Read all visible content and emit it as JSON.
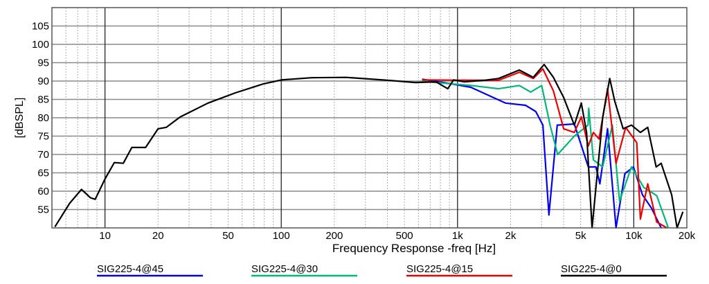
{
  "chart_data": {
    "type": "line",
    "title": "",
    "xlabel": "Frequency Response -freq [Hz]",
    "ylabel": "[dBSPL]",
    "xscale": "log",
    "xlim": [
      5,
      20000
    ],
    "ylim": [
      50,
      110
    ],
    "grid": true,
    "legend_position": "bottom",
    "x_ticks": [
      {
        "v": 10,
        "t": "10"
      },
      {
        "v": 20,
        "t": "20"
      },
      {
        "v": 50,
        "t": "50"
      },
      {
        "v": 100,
        "t": "100"
      },
      {
        "v": 200,
        "t": "200"
      },
      {
        "v": 500,
        "t": "500"
      },
      {
        "v": 1000,
        "t": "1k"
      },
      {
        "v": 2000,
        "t": "2k"
      },
      {
        "v": 5000,
        "t": "5k"
      },
      {
        "v": 10000,
        "t": "10k"
      },
      {
        "v": 20000,
        "t": "20k"
      }
    ],
    "y_ticks": [
      55,
      60,
      65,
      70,
      75,
      80,
      85,
      90,
      95,
      100,
      105
    ],
    "series": [
      {
        "name": "SIG225-4@45",
        "color": "#0000ee",
        "points": [
          [
            630,
            90.5
          ],
          [
            830,
            89.6
          ],
          [
            1190,
            88.3
          ],
          [
            1870,
            84
          ],
          [
            2430,
            83.4
          ],
          [
            2780,
            81.7
          ],
          [
            3050,
            78
          ],
          [
            3300,
            53.5
          ],
          [
            3680,
            78
          ],
          [
            4600,
            78.3
          ],
          [
            5520,
            66.6
          ],
          [
            6100,
            66.6
          ],
          [
            6420,
            62
          ],
          [
            7100,
            77
          ],
          [
            7930,
            50
          ],
          [
            8900,
            64.8
          ],
          [
            9960,
            66.6
          ],
          [
            11200,
            59
          ],
          [
            12600,
            55.4
          ],
          [
            14300,
            50
          ]
        ]
      },
      {
        "name": "SIG225-4@30",
        "color": "#00b878",
        "points": [
          [
            630,
            89.9
          ],
          [
            1190,
            88.8
          ],
          [
            1710,
            87.9
          ],
          [
            2240,
            88.8
          ],
          [
            2600,
            87
          ],
          [
            3000,
            88.8
          ],
          [
            3350,
            78
          ],
          [
            3700,
            70
          ],
          [
            4600,
            75
          ],
          [
            5500,
            78
          ],
          [
            5550,
            82.6
          ],
          [
            5900,
            68.5
          ],
          [
            6660,
            66.6
          ],
          [
            7560,
            78
          ],
          [
            8300,
            57.3
          ],
          [
            9700,
            66.6
          ],
          [
            11400,
            61
          ],
          [
            13500,
            58.8
          ],
          [
            15700,
            50
          ]
        ]
      },
      {
        "name": "SIG225-4@15",
        "color": "#ee0000",
        "points": [
          [
            630,
            90.3
          ],
          [
            1190,
            90.2
          ],
          [
            1710,
            90.2
          ],
          [
            2240,
            92.4
          ],
          [
            2690,
            90.7
          ],
          [
            3050,
            93.3
          ],
          [
            3500,
            87.3
          ],
          [
            4000,
            77
          ],
          [
            4600,
            76
          ],
          [
            5040,
            80.2
          ],
          [
            5520,
            72.3
          ],
          [
            5900,
            76
          ],
          [
            6350,
            74.2
          ],
          [
            7100,
            87.9
          ],
          [
            7930,
            67.6
          ],
          [
            9000,
            77.4
          ],
          [
            10400,
            73.2
          ],
          [
            10900,
            52.4
          ],
          [
            12000,
            62
          ],
          [
            13500,
            51.6
          ],
          [
            15400,
            50
          ]
        ]
      },
      {
        "name": "SIG225-4@0",
        "color": "#000000",
        "points": [
          [
            5.2,
            50.3
          ],
          [
            6.3,
            56.7
          ],
          [
            7.36,
            60.5
          ],
          [
            8.27,
            58.2
          ],
          [
            8.8,
            57.8
          ],
          [
            10,
            63.3
          ],
          [
            11.3,
            67.8
          ],
          [
            12.7,
            67.6
          ],
          [
            14.2,
            71.9
          ],
          [
            17,
            71.9
          ],
          [
            20,
            77
          ],
          [
            22.3,
            77.4
          ],
          [
            26.7,
            80.2
          ],
          [
            38.4,
            84
          ],
          [
            55,
            86.8
          ],
          [
            79,
            89.2
          ],
          [
            100,
            90.3
          ],
          [
            149,
            90.9
          ],
          [
            233,
            91
          ],
          [
            401,
            90.2
          ],
          [
            576,
            89.6
          ],
          [
            755,
            89.8
          ],
          [
            880,
            87.9
          ],
          [
            950,
            90.3
          ],
          [
            1090,
            89.8
          ],
          [
            1430,
            90.2
          ],
          [
            1710,
            90.7
          ],
          [
            2240,
            93
          ],
          [
            2690,
            91
          ],
          [
            3100,
            94.5
          ],
          [
            3500,
            91
          ],
          [
            4000,
            85.5
          ],
          [
            4600,
            78
          ],
          [
            5040,
            84
          ],
          [
            5400,
            76
          ],
          [
            5800,
            50
          ],
          [
            6660,
            80
          ],
          [
            7300,
            90.7
          ],
          [
            7800,
            84.5
          ],
          [
            8700,
            77
          ],
          [
            9700,
            78
          ],
          [
            10900,
            76
          ],
          [
            12000,
            77.4
          ],
          [
            13400,
            66.6
          ],
          [
            14300,
            67.6
          ],
          [
            16400,
            59
          ],
          [
            17600,
            50
          ],
          [
            19000,
            54.4
          ]
        ]
      }
    ]
  }
}
